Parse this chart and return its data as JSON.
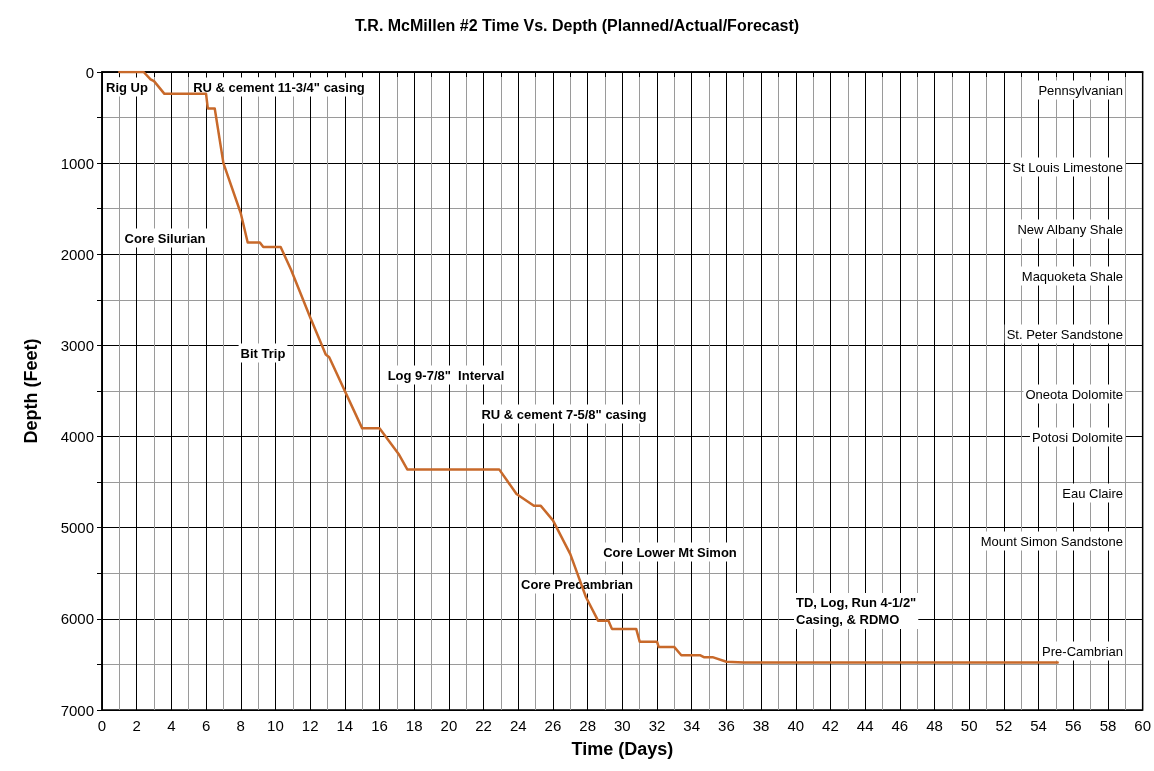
{
  "chart_data": {
    "type": "line",
    "title": "T.R. McMillen #2 Time Vs. Depth (Planned/Actual/Forecast)",
    "xlabel": "Time (Days)",
    "ylabel": "Depth (Feet)",
    "xlim": [
      0,
      60
    ],
    "xticks": [
      0,
      {
        "value": 1,
        "label": null
      },
      2,
      {
        "value": 3,
        "label": null
      },
      4,
      {
        "value": 5,
        "label": null
      },
      6,
      {
        "value": 7,
        "label": null
      },
      8,
      {
        "value": 9,
        "label": null
      },
      10,
      {
        "value": 11,
        "label": null
      },
      12,
      {
        "value": 13,
        "label": null
      },
      14,
      {
        "value": 15,
        "label": null
      },
      16,
      {
        "value": 17,
        "label": null
      },
      18,
      {
        "value": 19,
        "label": null
      },
      20,
      {
        "value": 21,
        "label": null
      },
      22,
      {
        "value": 23,
        "label": null
      },
      24,
      {
        "value": 25,
        "label": null
      },
      26,
      {
        "value": 27,
        "label": null
      },
      28,
      {
        "value": 29,
        "label": null
      },
      30,
      {
        "value": 31,
        "label": null
      },
      32,
      {
        "value": 33,
        "label": null
      },
      34,
      {
        "value": 35,
        "label": null
      },
      36,
      {
        "value": 37,
        "label": null
      },
      38,
      {
        "value": 39,
        "label": null
      },
      40,
      {
        "value": 41,
        "label": null
      },
      42,
      {
        "value": 43,
        "label": null
      },
      44,
      {
        "value": 45,
        "label": null
      },
      46,
      {
        "value": 47,
        "label": null
      },
      48,
      {
        "value": 49,
        "label": null
      },
      50,
      {
        "value": 51,
        "label": null
      },
      52,
      {
        "value": 53,
        "label": null
      },
      54,
      {
        "value": 55,
        "label": null
      },
      56,
      {
        "value": 57,
        "label": null
      },
      58,
      {
        "value": 59,
        "label": null
      },
      60
    ],
    "ylim": [
      7000,
      0
    ],
    "yticks": [
      0,
      {
        "value": 500,
        "label": null
      },
      1000,
      {
        "value": 1500,
        "label": null
      },
      2000,
      {
        "value": 2500,
        "label": null
      },
      3000,
      {
        "value": 3500,
        "label": null
      },
      4000,
      {
        "value": 4500,
        "label": null
      },
      5000,
      {
        "value": 5500,
        "label": null
      },
      6000,
      {
        "value": 6500,
        "label": null
      },
      7000
    ],
    "grid": true,
    "marker": "none",
    "line_style": "solid",
    "series": [
      {
        "color": "#c8692a",
        "x": [
          1.0,
          2.4,
          2.8,
          3.0,
          3.6,
          6.0,
          6.1,
          6.5,
          7.0,
          8.0,
          8.4,
          9.1,
          9.3,
          10.3,
          10.9,
          12.0,
          12.9,
          13.1,
          15.0,
          16.0,
          17.1,
          17.6,
          22.9,
          23.9,
          24.9,
          25.3,
          26.0,
          27.0,
          27.9,
          28.6,
          29.2,
          29.4,
          30.8,
          31.0,
          32.0,
          32.1,
          33.0,
          33.4,
          34.5,
          34.7,
          35.2,
          36.0,
          37.0,
          55.1
        ],
        "values": [
          0,
          0,
          80,
          100,
          240,
          240,
          400,
          400,
          1000,
          1550,
          1870,
          1870,
          1920,
          1920,
          2170,
          2690,
          3100,
          3130,
          3910,
          3910,
          4190,
          4360,
          4360,
          4630,
          4760,
          4760,
          4920,
          5290,
          5760,
          6020,
          6020,
          6110,
          6110,
          6250,
          6250,
          6310,
          6310,
          6400,
          6400,
          6420,
          6420,
          6470,
          6480,
          6480
        ]
      }
    ],
    "annotations": [
      "Rig Up",
      "RU & cement 11-3/4\" casing",
      "Core Silurian",
      "Bit Trip",
      "Log 9-7/8\"  Interval",
      "RU & cement 7-5/8\" casing",
      "Core Lower Mt Simon",
      "Core Precambrian",
      "TD, Log, Run 4-1/2\"\nCasing, & RDMO",
      "Pennsylvanian",
      "St Louis Limestone",
      "New Albany Shale",
      "Maquoketa Shale",
      "St. Peter Sandstone",
      "Oneota Dolomite",
      "Potosi Dolomite",
      "Eau Claire",
      "Mount Simon Sandstone",
      "Pre-Cambrian"
    ]
  }
}
